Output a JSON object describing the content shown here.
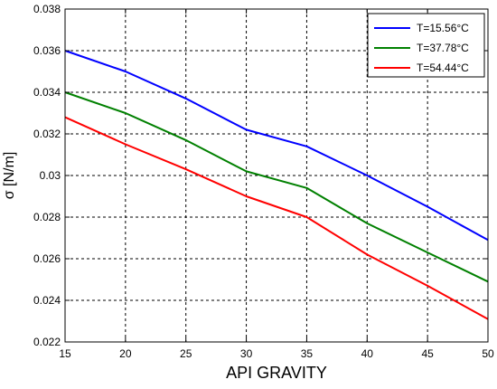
{
  "chart_data": {
    "type": "line",
    "xlabel": "API GRAVITY",
    "ylabel": "σ [N/m]",
    "xlim": [
      15,
      50
    ],
    "ylim": [
      0.022,
      0.038
    ],
    "x_ticks": [
      15,
      20,
      25,
      30,
      35,
      40,
      45,
      50
    ],
    "x_tick_labels": [
      "15",
      "20",
      "25",
      "30",
      "35",
      "40",
      "45",
      "50"
    ],
    "y_ticks": [
      0.022,
      0.024,
      0.026,
      0.028,
      0.03,
      0.032,
      0.034,
      0.036,
      0.038
    ],
    "y_tick_labels": [
      "0.022",
      "0.024",
      "0.026",
      "0.028",
      "0.03",
      "0.032",
      "0.034",
      "0.036",
      "0.038"
    ],
    "grid": true,
    "legend_position": "top-right",
    "x": [
      15,
      20,
      25,
      30,
      35,
      40,
      45,
      50
    ],
    "series": [
      {
        "name": "T=15.56°C",
        "color": "#0000ff",
        "values": [
          0.036,
          0.035,
          0.0337,
          0.0322,
          0.0314,
          0.03,
          0.0285,
          0.0269
        ]
      },
      {
        "name": "T=37.78°C",
        "color": "#008000",
        "values": [
          0.034,
          0.033,
          0.0317,
          0.0302,
          0.0294,
          0.0277,
          0.0263,
          0.0249
        ]
      },
      {
        "name": "T=54.44°C",
        "color": "#ff0000",
        "values": [
          0.0328,
          0.0315,
          0.0303,
          0.029,
          0.028,
          0.0262,
          0.0247,
          0.0231
        ]
      }
    ]
  }
}
